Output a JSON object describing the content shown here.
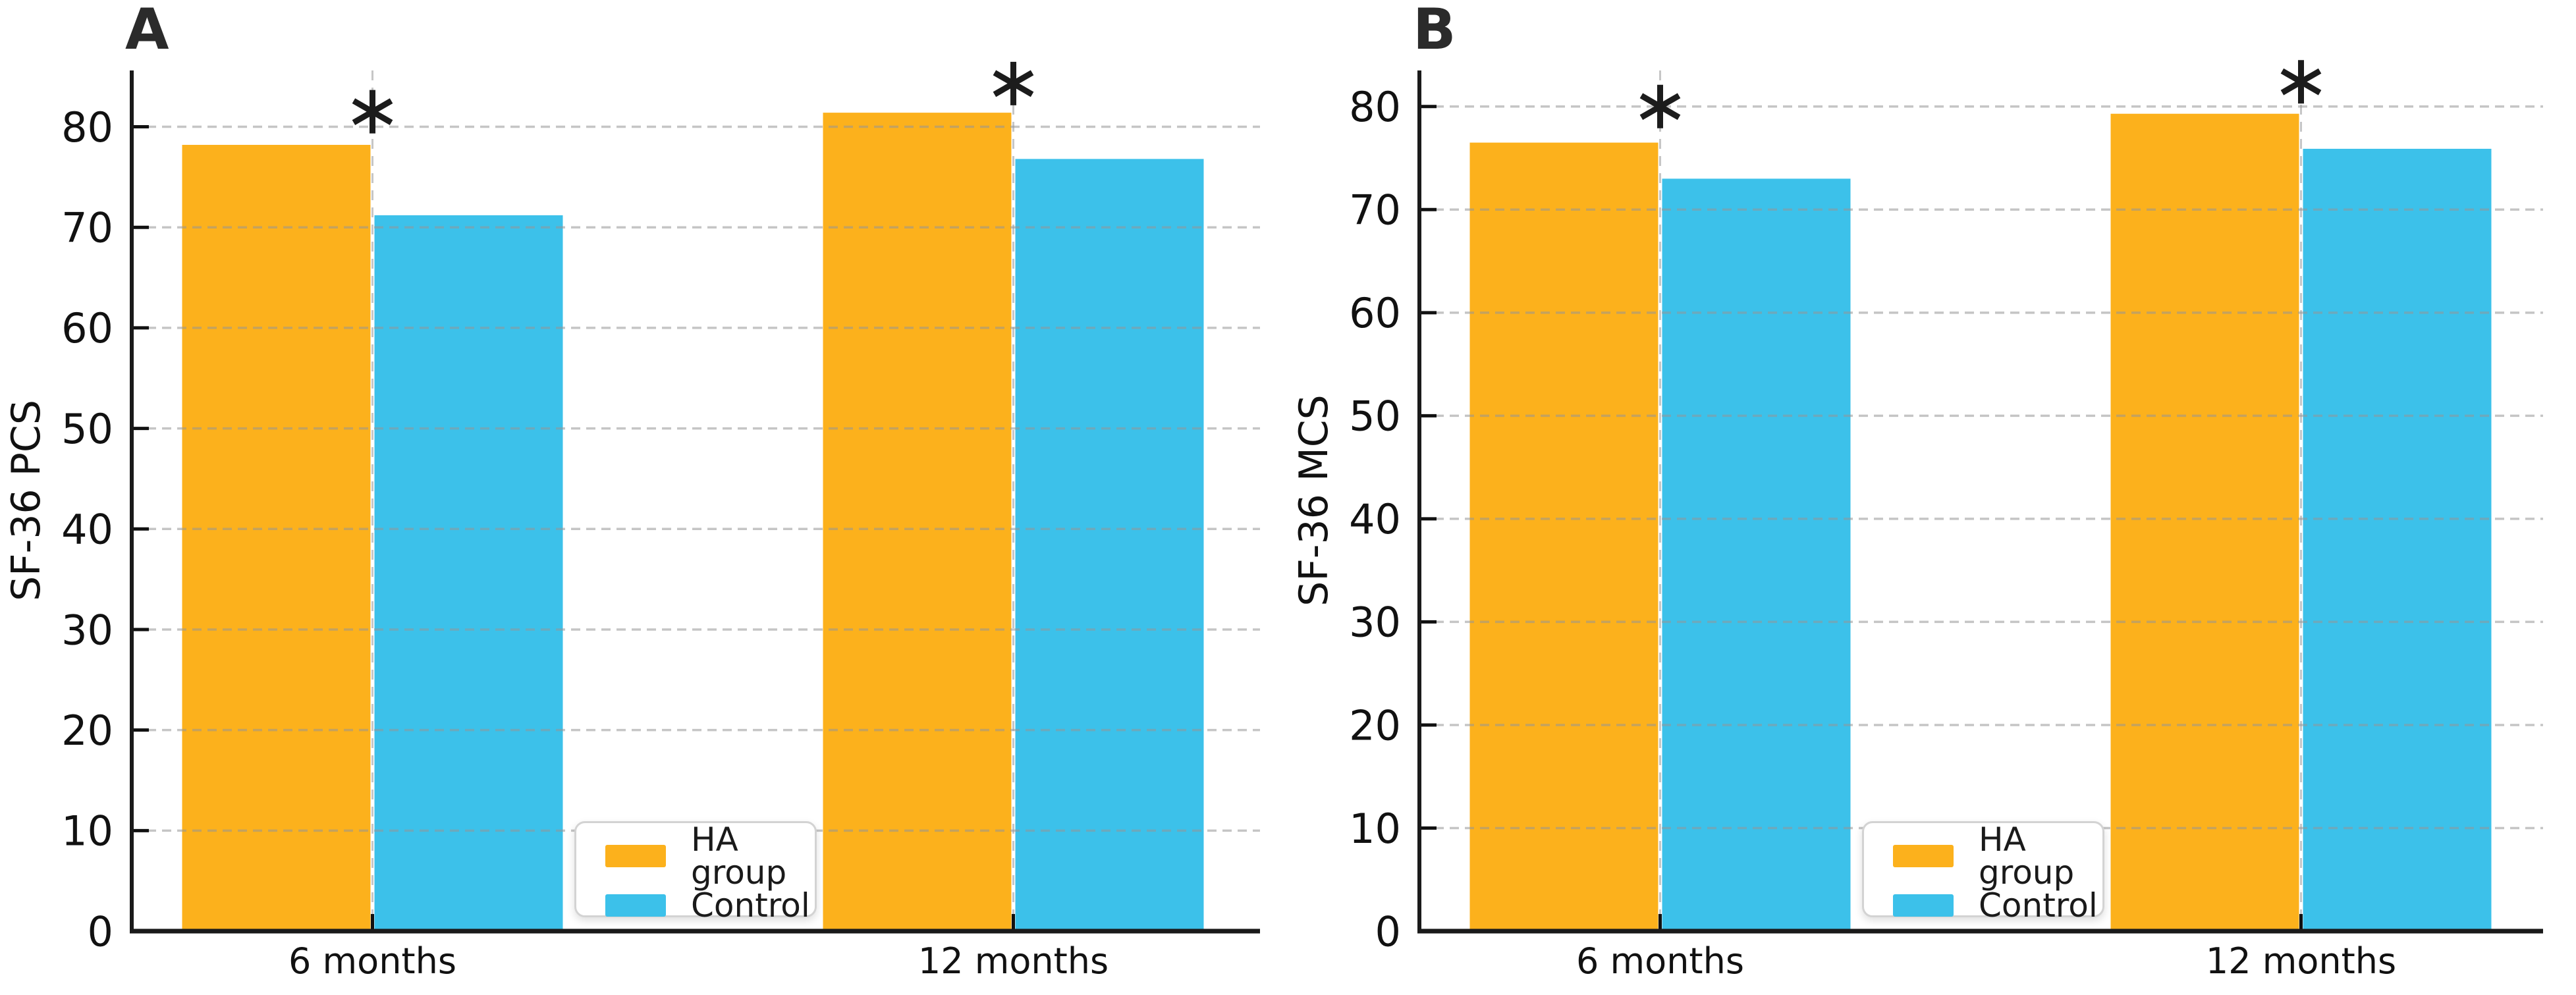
{
  "figure_background": "#ffffff",
  "accent_colors": {
    "ha_group": "#FCB11C",
    "control": "#3CC1EA"
  },
  "chart_data": [
    {
      "type": "bar",
      "panel_label": "A",
      "ylabel": "SF-36 PCS",
      "categories": [
        "6 months",
        "12 months"
      ],
      "series": [
        {
          "name": "HA group",
          "color": "#FCB11C",
          "values": [
            78.2,
            81.4
          ]
        },
        {
          "name": "Control",
          "color": "#3CC1EA",
          "values": [
            71.2,
            76.8
          ]
        }
      ],
      "yticks": [
        0,
        10,
        20,
        30,
        40,
        50,
        60,
        70,
        80
      ],
      "ylim": [
        0,
        85.6
      ],
      "grid": "horizontal-dashed",
      "legend_position": "lower center",
      "significance_markers": [
        {
          "category": "6 months",
          "symbol": "*",
          "y": 81.5
        },
        {
          "category": "12 months",
          "symbol": "*",
          "y": 84.3
        }
      ]
    },
    {
      "type": "bar",
      "panel_label": "B",
      "ylabel": "SF-36 MCS",
      "categories": [
        "6 months",
        "12 months"
      ],
      "series": [
        {
          "name": "HA group",
          "color": "#FCB11C",
          "values": [
            76.5,
            79.3
          ]
        },
        {
          "name": "Control",
          "color": "#3CC1EA",
          "values": [
            73.0,
            75.9
          ]
        }
      ],
      "yticks": [
        0,
        10,
        20,
        30,
        40,
        50,
        60,
        70,
        80
      ],
      "ylim": [
        0,
        83.5
      ],
      "grid": "horizontal-dashed",
      "legend_position": "lower center",
      "significance_markers": [
        {
          "category": "6 months",
          "symbol": "*",
          "y": 80.0
        },
        {
          "category": "12 months",
          "symbol": "*",
          "y": 82.4
        }
      ]
    }
  ]
}
